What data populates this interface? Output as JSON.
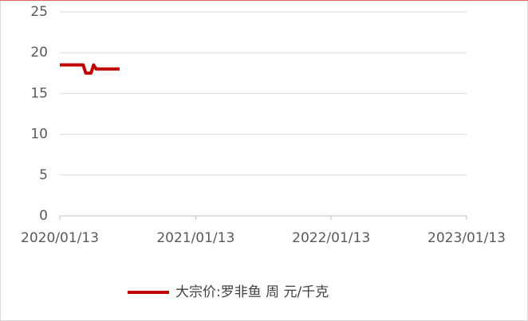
{
  "chart_data": {
    "type": "line",
    "x": [
      "2020/01/13",
      "2020/01/20",
      "2020/01/27",
      "2020/02/03",
      "2020/02/10",
      "2020/02/17",
      "2020/02/24",
      "2020/03/02",
      "2020/03/09",
      "2020/03/16",
      "2020/03/23",
      "2020/03/30",
      "2020/04/06",
      "2020/04/13",
      "2020/04/20",
      "2020/04/27",
      "2020/05/04",
      "2020/05/11",
      "2020/05/18",
      "2020/05/25",
      "2020/06/01",
      "2020/06/08",
      "2020/06/15",
      "2020/06/22"
    ],
    "series": [
      {
        "name": "大宗价:罗非鱼 周 元/千克",
        "color": "#c00000",
        "values": [
          18.5,
          18.5,
          18.5,
          18.5,
          18.5,
          18.5,
          18.5,
          18.5,
          18.5,
          18.5,
          17.5,
          17.5,
          17.5,
          18.5,
          18,
          18,
          18,
          18,
          18,
          18,
          18,
          18,
          18,
          18
        ]
      }
    ],
    "xlim": [
      "2020/01/13",
      "2023/01/13"
    ],
    "xticks": [
      "2020/01/13",
      "2021/01/13",
      "2022/01/13",
      "2023/01/13"
    ],
    "ylim": [
      0,
      25
    ],
    "yticks": [
      0,
      5,
      10,
      15,
      20,
      25
    ],
    "grid": true,
    "legend": "bottom"
  }
}
